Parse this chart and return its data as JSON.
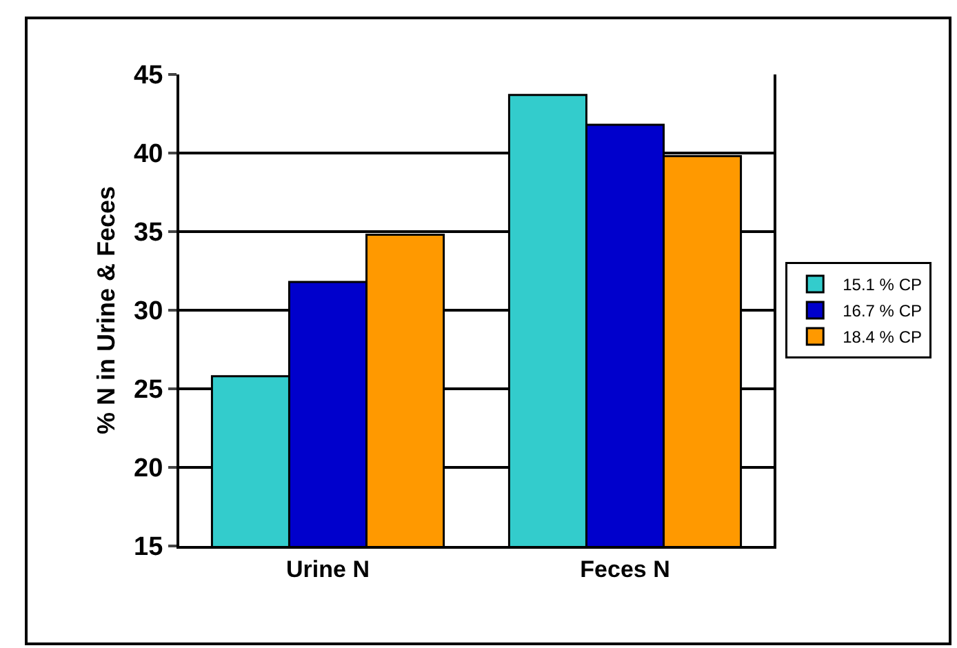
{
  "chart_data": {
    "type": "bar",
    "ylabel": "% N in Urine & Feces",
    "categories": [
      "Urine N",
      "Feces N"
    ],
    "series": [
      {
        "name": "15.1 % CP",
        "color": "#33cccc",
        "values": [
          25.8,
          43.7
        ]
      },
      {
        "name": "16.7 % CP",
        "color": "#0000cc",
        "values": [
          31.8,
          41.8
        ]
      },
      {
        "name": "18.4 % CP",
        "color": "#ff9900",
        "values": [
          34.8,
          39.8
        ]
      }
    ],
    "ylim": [
      15,
      45
    ],
    "yticks": [
      15,
      20,
      25,
      30,
      35,
      40,
      45
    ],
    "grid": "y",
    "legend": "right"
  }
}
